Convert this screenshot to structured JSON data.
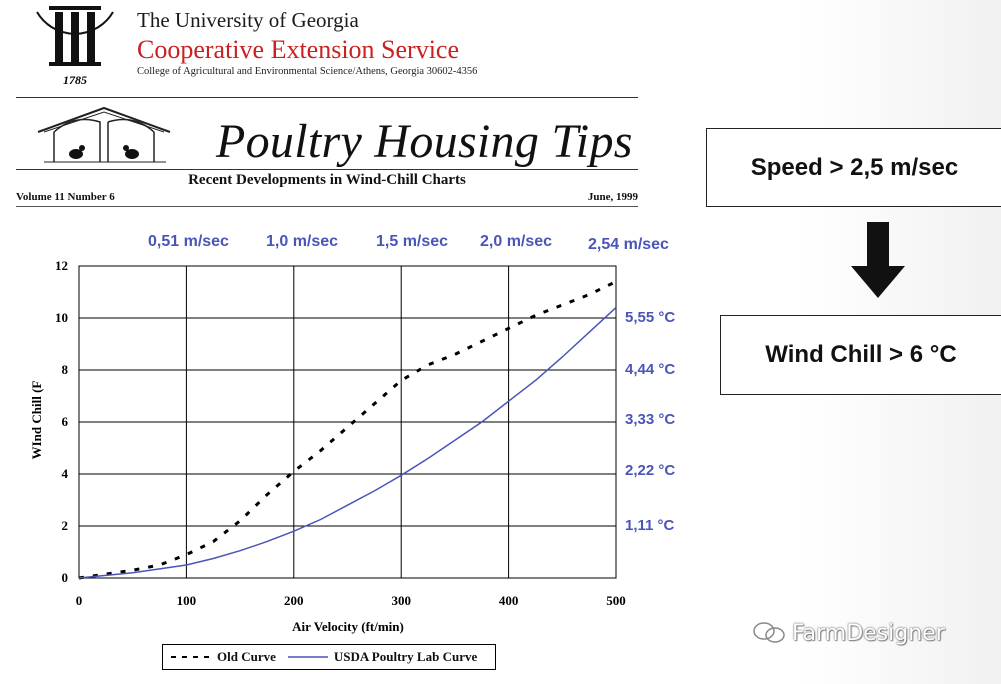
{
  "header": {
    "university": "The University of Georgia",
    "service": "Cooperative Extension Service",
    "college": "College of Agricultural and Environmental Science/Athens, Georgia 30602-4356",
    "seal_year": "1785"
  },
  "newsletter": {
    "title": "Poultry Housing Tips",
    "subtitle": "Recent Developments in Wind-Chill Charts",
    "volume": "Volume 11  Number 6",
    "date": "June, 1999"
  },
  "speed_labels": [
    "0,51 m/sec",
    "1,0 m/sec",
    "1,5 m/sec",
    "2,0 m/sec",
    "2,54 m/sec"
  ],
  "celsius_labels": [
    "5,55 °C",
    "4,44 °C",
    "3,33 °C",
    "2,22 °C",
    "1,11 °C"
  ],
  "chart_data": {
    "type": "line",
    "xlabel": "Air Velocity (ft/min)",
    "ylabel": "WInd Chill (F",
    "xlim": [
      0,
      500
    ],
    "ylim": [
      0,
      12
    ],
    "xticks": [
      0,
      100,
      200,
      300,
      400,
      500
    ],
    "yticks": [
      0,
      2,
      4,
      6,
      8,
      10,
      12
    ],
    "grid": true,
    "legend_position": "bottom",
    "series": [
      {
        "name": "Old Curve",
        "style": "dashed",
        "color": "#000000",
        "x": [
          0,
          25,
          50,
          75,
          100,
          125,
          150,
          175,
          200,
          225,
          250,
          275,
          300,
          325,
          350,
          375,
          400,
          425,
          450,
          475,
          500
        ],
        "y": [
          0,
          0.15,
          0.3,
          0.5,
          0.9,
          1.4,
          2.2,
          3.2,
          4.1,
          4.9,
          5.8,
          6.7,
          7.6,
          8.2,
          8.6,
          9.1,
          9.6,
          10.1,
          10.5,
          10.9,
          11.4
        ]
      },
      {
        "name": "USDA Poultry Lab Curve",
        "style": "solid",
        "color": "#4a55b8",
        "x": [
          0,
          25,
          50,
          75,
          100,
          125,
          150,
          175,
          200,
          225,
          250,
          275,
          300,
          325,
          350,
          375,
          400,
          425,
          450,
          475,
          500
        ],
        "y": [
          0,
          0.1,
          0.2,
          0.35,
          0.5,
          0.75,
          1.05,
          1.4,
          1.8,
          2.25,
          2.8,
          3.35,
          3.95,
          4.6,
          5.3,
          6.0,
          6.8,
          7.6,
          8.5,
          9.45,
          10.4
        ]
      }
    ]
  },
  "callouts": {
    "speed": "Speed > 2,5 m/sec",
    "wind_chill": "Wind Chill > 6 °C"
  },
  "watermark": "FarmDesigner"
}
